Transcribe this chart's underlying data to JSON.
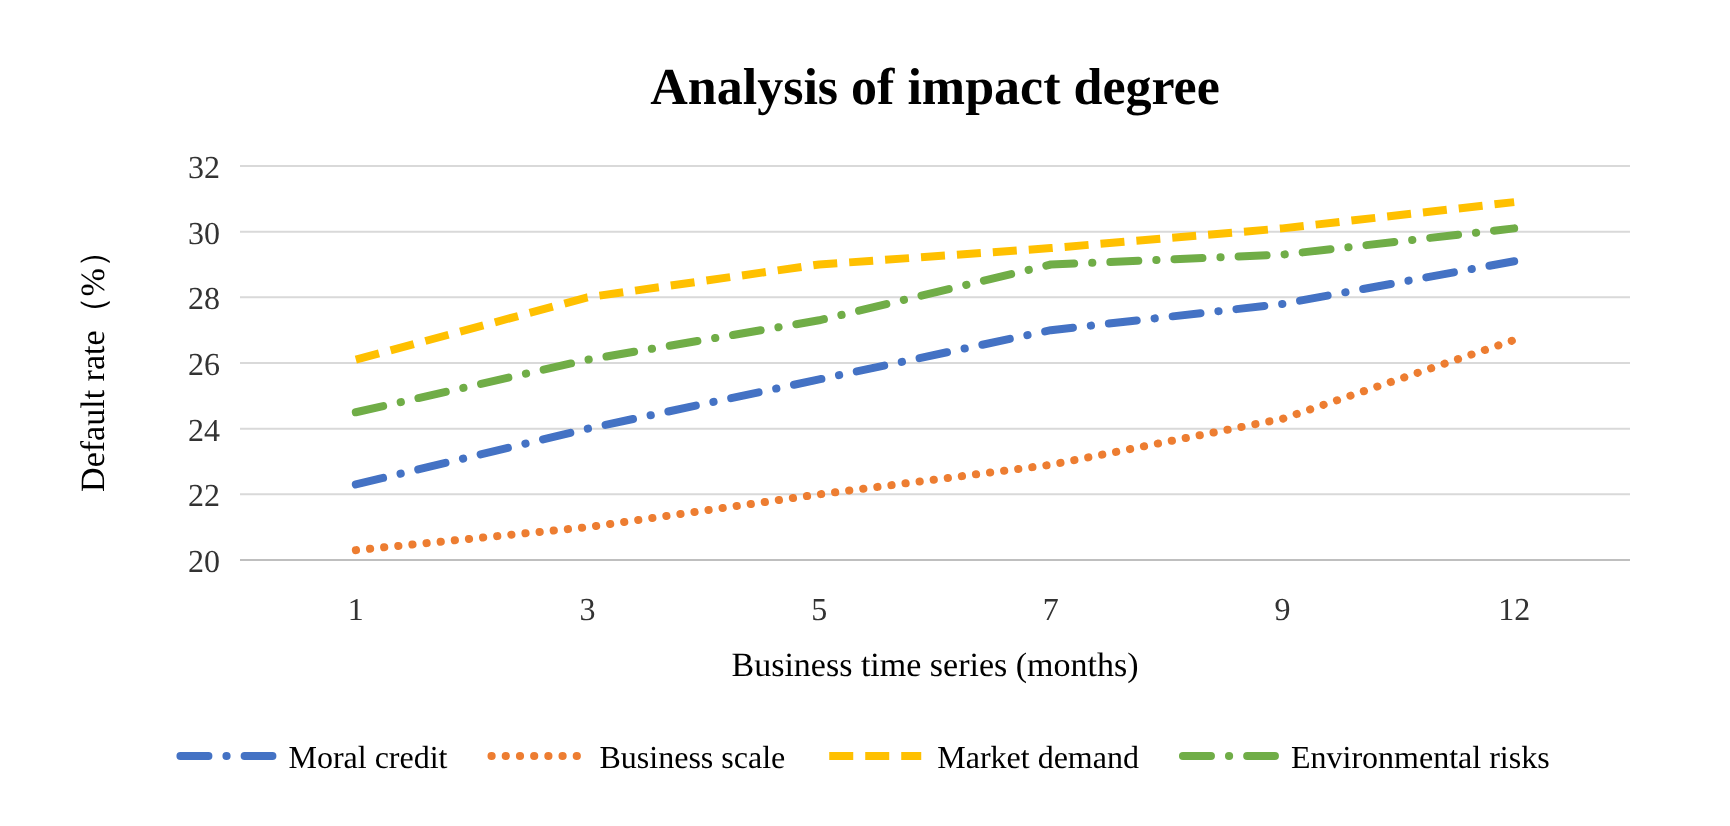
{
  "chart_data": {
    "type": "line",
    "title": "Analysis of impact degree",
    "xlabel": "Business time series (months)",
    "ylabel": "Default rate（%）",
    "categories": [
      "1",
      "3",
      "5",
      "7",
      "9",
      "12"
    ],
    "series": [
      {
        "name": "Moral credit",
        "color": "#4472c4",
        "line_style": "dashdot",
        "values": [
          22.3,
          24.0,
          25.5,
          27.0,
          27.8,
          29.1
        ]
      },
      {
        "name": "Business scale",
        "color": "#ed7d31",
        "line_style": "dotted",
        "values": [
          20.3,
          21.0,
          22.0,
          22.9,
          24.3,
          26.7
        ]
      },
      {
        "name": "Market demand",
        "color": "#ffc000",
        "line_style": "dashed",
        "values": [
          26.1,
          28.0,
          29.0,
          29.5,
          30.1,
          30.9
        ]
      },
      {
        "name": "Environmental risks",
        "color": "#70ad47",
        "line_style": "dashdot",
        "values": [
          24.5,
          26.1,
          27.3,
          29.0,
          29.3,
          30.1
        ]
      }
    ],
    "ylim": [
      20,
      32
    ],
    "yticks": [
      20,
      22,
      24,
      26,
      28,
      30,
      32
    ],
    "grid": "y",
    "legend": "bottom",
    "marker": "none"
  }
}
